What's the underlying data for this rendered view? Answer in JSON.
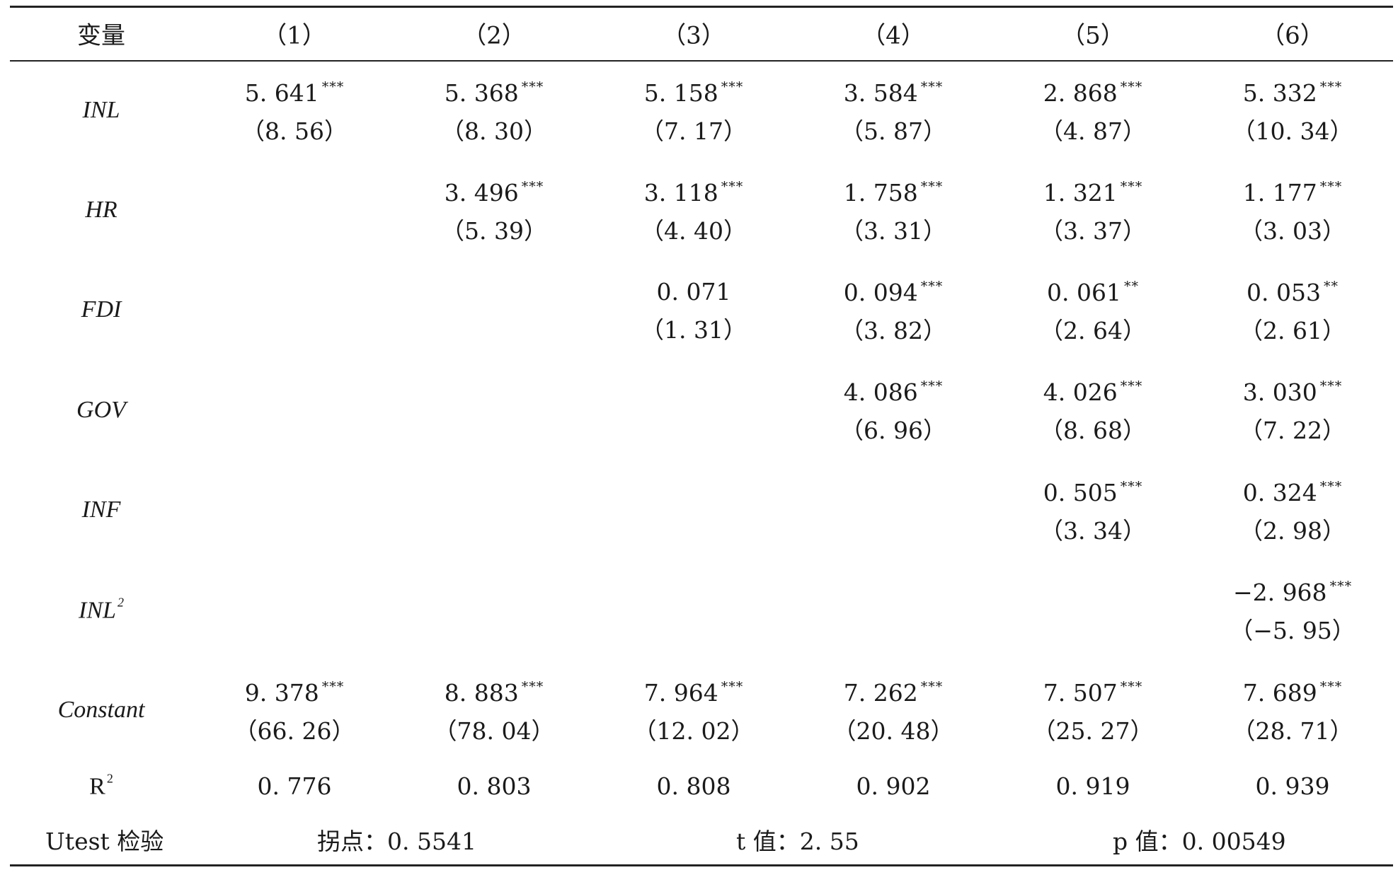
{
  "header": {
    "var_label": "变量",
    "columns": [
      "（1）",
      "（2）",
      "（3）",
      "（4）",
      "（5）",
      "（6）"
    ]
  },
  "rows": [
    {
      "label": "INL",
      "cells": [
        {
          "coef": "5. 641",
          "stars": "***",
          "t": "（8. 56）"
        },
        {
          "coef": "5. 368",
          "stars": "***",
          "t": "（8. 30）"
        },
        {
          "coef": "5. 158",
          "stars": "***",
          "t": "（7. 17）"
        },
        {
          "coef": "3. 584",
          "stars": "***",
          "t": "（5. 87）"
        },
        {
          "coef": "2. 868",
          "stars": "***",
          "t": "（4. 87）"
        },
        {
          "coef": "5. 332",
          "stars": "***",
          "t": "（10. 34）"
        }
      ]
    },
    {
      "label": "HR",
      "cells": [
        null,
        {
          "coef": "3. 496",
          "stars": "***",
          "t": "（5. 39）"
        },
        {
          "coef": "3. 118",
          "stars": "***",
          "t": "（4. 40）"
        },
        {
          "coef": "1. 758",
          "stars": "***",
          "t": "（3. 31）"
        },
        {
          "coef": "1. 321",
          "stars": "***",
          "t": "（3. 37）"
        },
        {
          "coef": "1. 177",
          "stars": "***",
          "t": "（3. 03）"
        }
      ]
    },
    {
      "label": "FDI",
      "cells": [
        null,
        null,
        {
          "coef": "0. 071",
          "stars": "",
          "t": "（1. 31）"
        },
        {
          "coef": "0. 094",
          "stars": "***",
          "t": "（3. 82）"
        },
        {
          "coef": "0. 061",
          "stars": "**",
          "t": "（2. 64）"
        },
        {
          "coef": "0. 053",
          "stars": "**",
          "t": "（2. 61）"
        }
      ]
    },
    {
      "label": "GOV",
      "cells": [
        null,
        null,
        null,
        {
          "coef": "4. 086",
          "stars": "***",
          "t": "（6. 96）"
        },
        {
          "coef": "4. 026",
          "stars": "***",
          "t": "（8. 68）"
        },
        {
          "coef": "3. 030",
          "stars": "***",
          "t": "（7. 22）"
        }
      ]
    },
    {
      "label": "INF",
      "cells": [
        null,
        null,
        null,
        null,
        {
          "coef": "0. 505",
          "stars": "***",
          "t": "（3. 34）"
        },
        {
          "coef": "0. 324",
          "stars": "***",
          "t": "（2. 98）"
        }
      ]
    },
    {
      "label": "INL",
      "label_sup": "2",
      "cells": [
        null,
        null,
        null,
        null,
        null,
        {
          "coef": "−2. 968",
          "stars": "***",
          "t": "（−5. 95）"
        }
      ]
    },
    {
      "label": "Constant",
      "cells": [
        {
          "coef": "9. 378",
          "stars": "***",
          "t": "（66. 26）"
        },
        {
          "coef": "8. 883",
          "stars": "***",
          "t": "（78. 04）"
        },
        {
          "coef": "7. 964",
          "stars": "***",
          "t": "（12. 02）"
        },
        {
          "coef": "7. 262",
          "stars": "***",
          "t": "（20. 48）"
        },
        {
          "coef": "7. 507",
          "stars": "***",
          "t": "（25. 27）"
        },
        {
          "coef": "7. 689",
          "stars": "***",
          "t": "（28. 71）"
        }
      ]
    }
  ],
  "r2": {
    "label": "R",
    "label_sup": "2",
    "values": [
      "0. 776",
      "0. 803",
      "0. 808",
      "0. 902",
      "0. 919",
      "0. 939"
    ]
  },
  "utest": {
    "label": "Utest 检验",
    "turning_point": "拐点：0. 5541",
    "t_value": "t 值：2. 55",
    "p_value": "p 值：0. 00549"
  }
}
